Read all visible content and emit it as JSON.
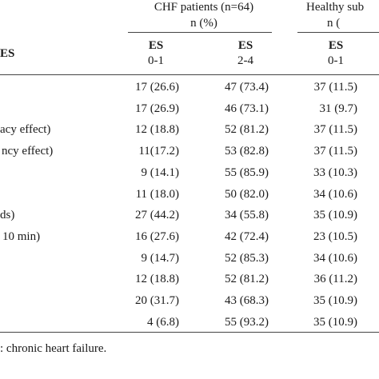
{
  "header": {
    "group_chf": "CHF patients (n=64)",
    "group_chf_unit": "n (%)",
    "group_healthy": "Healthy sub",
    "group_healthy_unit": "n (",
    "row_header": "ES",
    "col_es": [
      "ES",
      "ES",
      "ES"
    ],
    "col_range": [
      "0-1",
      "2-4",
      "0-1"
    ]
  },
  "rows": [
    {
      "label": "",
      "chf_01": "17 (26.6)",
      "chf_24": "47 (73.4)",
      "healthy_01": "37 (11.5)"
    },
    {
      "label": "",
      "chf_01": "17 (26.9)",
      "chf_24": "46 (73.1)",
      "healthy_01": "31 (9.7)"
    },
    {
      "label": "acy effect)",
      "chf_01": "12 (18.8)",
      "chf_24": "52 (81.2)",
      "healthy_01": "37 (11.5)"
    },
    {
      "label": "ncy effect)",
      "chf_01": "11(17.2)",
      "chf_24": "53 (82.8)",
      "healthy_01": "37 (11.5)"
    },
    {
      "label": "",
      "chf_01": "9 (14.1)",
      "chf_24": "55 (85.9)",
      "healthy_01": "33 (10.3)"
    },
    {
      "label": "",
      "chf_01": "11 (18.0)",
      "chf_24": "50 (82.0)",
      "healthy_01": "34 (10.6)"
    },
    {
      "label": "ds)",
      "chf_01": "27 (44.2)",
      "chf_24": "34 (55.8)",
      "healthy_01": "35 (10.9)"
    },
    {
      "label": "10 min)",
      "chf_01": "16 (27.6)",
      "chf_24": "42 (72.4)",
      "healthy_01": "23 (10.5)"
    },
    {
      "label": "",
      "chf_01": "9 (14.7)",
      "chf_24": "52 (85.3)",
      "healthy_01": "34 (10.6)"
    },
    {
      "label": "",
      "chf_01": "12 (18.8)",
      "chf_24": "52 (81.2)",
      "healthy_01": "36 (11.2)"
    },
    {
      "label": "",
      "chf_01": "20 (31.7)",
      "chf_24": "43 (68.3)",
      "healthy_01": "35 (10.9)"
    },
    {
      "label": "",
      "chf_01": "4 (6.8)",
      "chf_24": "55 (93.2)",
      "healthy_01": "35 (10.9)"
    }
  ],
  "footnote": ": chronic heart failure."
}
